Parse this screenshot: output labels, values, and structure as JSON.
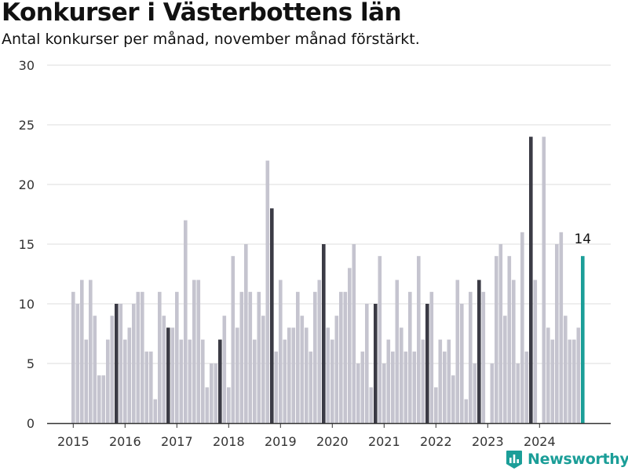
{
  "title": "Konkurser i Västerbottens län",
  "subtitle": "Antal konkurser per månad, november månad förstärkt.",
  "brand": {
    "name": "Newsworthy",
    "icon": "newsworthy-logo-icon",
    "color": "#1b9e98"
  },
  "chart_data": {
    "type": "bar",
    "ylim": [
      0,
      30
    ],
    "yticks": [
      0,
      5,
      10,
      15,
      20,
      25,
      30
    ],
    "x_tick_labels": [
      "2015",
      "2016",
      "2017",
      "2018",
      "2019",
      "2020",
      "2021",
      "2022",
      "2023",
      "2024"
    ],
    "start_month": "2015-01",
    "values": [
      11,
      10,
      12,
      7,
      12,
      9,
      4,
      4,
      7,
      9,
      10,
      10,
      7,
      8,
      10,
      11,
      11,
      6,
      6,
      2,
      11,
      9,
      8,
      8,
      11,
      7,
      17,
      7,
      12,
      12,
      7,
      3,
      5,
      5,
      7,
      9,
      3,
      14,
      8,
      11,
      15,
      11,
      7,
      11,
      9,
      22,
      18,
      6,
      12,
      7,
      8,
      8,
      11,
      9,
      8,
      6,
      11,
      12,
      15,
      8,
      7,
      9,
      11,
      11,
      13,
      15,
      5,
      6,
      10,
      3,
      10,
      14,
      5,
      7,
      6,
      12,
      8,
      6,
      11,
      6,
      14,
      7,
      10,
      11,
      3,
      7,
      6,
      7,
      4,
      12,
      10,
      2,
      11,
      5,
      12,
      11,
      0,
      5,
      14,
      15,
      9,
      14,
      12,
      5,
      16,
      6,
      24,
      12,
      0,
      24,
      8,
      7,
      15,
      16,
      9,
      7,
      7,
      8,
      14
    ],
    "highlight_month": "november",
    "highlight_label": "14",
    "colors": {
      "default": "#c5c4cf",
      "november": "#3b3b45",
      "latest": "#1b9e98",
      "grid": "#dcdcdc",
      "axis": "#333333"
    }
  }
}
